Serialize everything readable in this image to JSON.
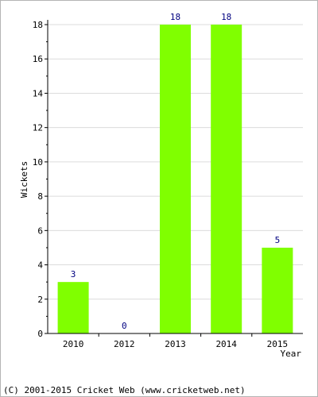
{
  "chart_data": {
    "type": "bar",
    "categories": [
      "2010",
      "2012",
      "2013",
      "2014",
      "2015"
    ],
    "values": [
      3,
      0,
      18,
      18,
      5
    ],
    "data_labels": [
      "3",
      "0",
      "18",
      "18",
      "5"
    ],
    "xlabel": "Year",
    "ylabel": "Wickets",
    "ylim": [
      0,
      18
    ],
    "yticks": [
      "0",
      "2",
      "4",
      "6",
      "8",
      "10",
      "12",
      "14",
      "16",
      "18"
    ],
    "grid": true,
    "bar_color": "#80ff00",
    "label_color": "#000080"
  },
  "footer": {
    "copyright": "(C) 2001-2015 Cricket Web (www.cricketweb.net)"
  }
}
